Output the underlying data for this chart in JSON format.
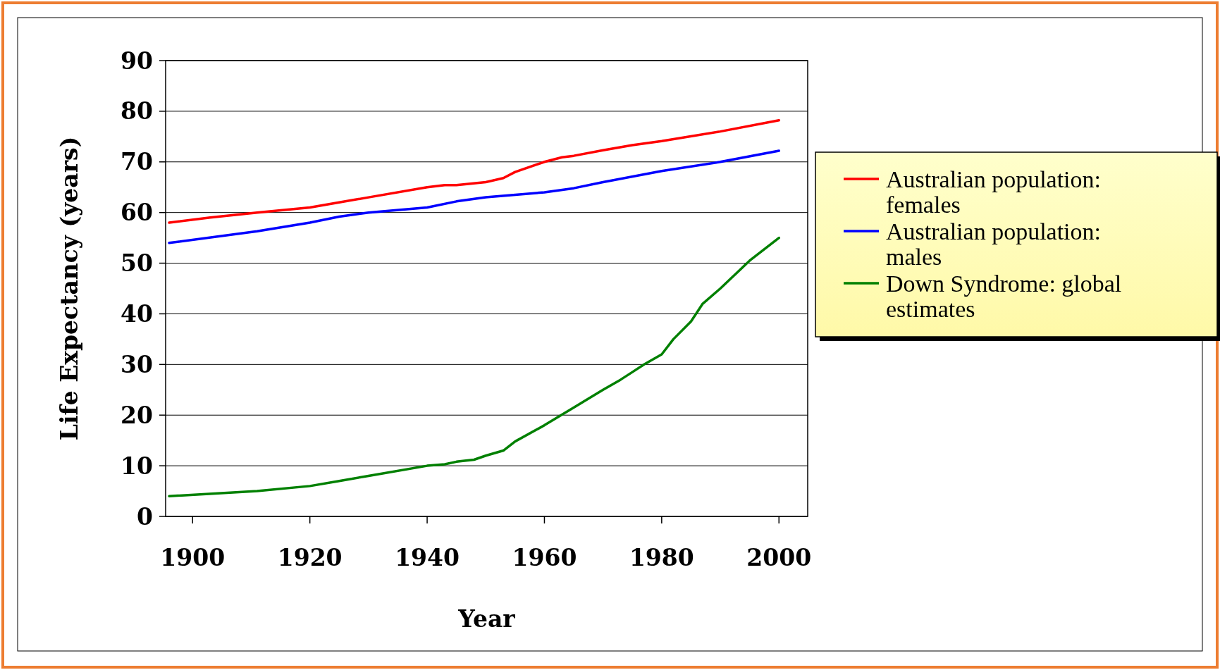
{
  "chart_data": {
    "type": "line",
    "xlabel": "Year",
    "ylabel": "Life Expectancy (years)",
    "xlim": [
      1895.4,
      2004.9
    ],
    "xticks": [
      1900,
      1920,
      1940,
      1960,
      1980,
      2000
    ],
    "ylim": [
      0,
      90
    ],
    "yticks": [
      0,
      10,
      20,
      30,
      40,
      50,
      60,
      70,
      80,
      90
    ],
    "grid": "y",
    "legend": "right",
    "line_style": "solid",
    "series": [
      {
        "name": "Australian population: females",
        "color": "#ff0000",
        "x": [
          1896,
          1903,
          1911,
          1920,
          1925,
          1930,
          1940,
          1943,
          1945,
          1950,
          1953,
          1955,
          1960,
          1963,
          1965,
          1970,
          1975,
          1980,
          1990,
          2000
        ],
        "values": [
          58,
          59,
          60,
          61,
          62,
          63,
          65,
          65.4,
          65.4,
          66,
          66.8,
          68,
          70,
          70.9,
          71.2,
          72.3,
          73.3,
          74.1,
          76,
          78.2
        ]
      },
      {
        "name": "Australian population: males",
        "color": "#0000ff",
        "x": [
          1896,
          1911,
          1920,
          1925,
          1930,
          1940,
          1945,
          1950,
          1960,
          1965,
          1970,
          1980,
          1990,
          2000
        ],
        "values": [
          54,
          56.3,
          58,
          59.2,
          60,
          61,
          62.2,
          63,
          64,
          64.8,
          66,
          68.2,
          70,
          72.2
        ]
      },
      {
        "name": "Down Syndrome: global estimates",
        "color": "#008000",
        "x": [
          1896,
          1911,
          1920,
          1925,
          1930,
          1940,
          1943,
          1945,
          1948,
          1950,
          1953,
          1955,
          1960,
          1965,
          1970,
          1973,
          1975,
          1977,
          1980,
          1982,
          1985,
          1987,
          1990,
          1995,
          2000
        ],
        "values": [
          4,
          5,
          6,
          7,
          8,
          10,
          10.3,
          10.8,
          11.2,
          12,
          13,
          14.8,
          18,
          21.5,
          25,
          27,
          28.5,
          30,
          32,
          35,
          38.5,
          42,
          45,
          50.5,
          55
        ]
      }
    ]
  }
}
